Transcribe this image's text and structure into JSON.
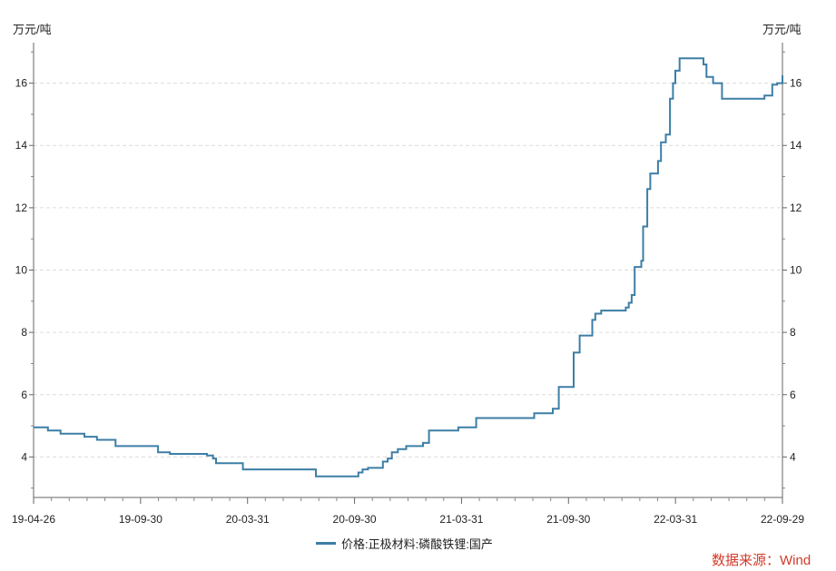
{
  "chart_data": {
    "type": "line",
    "y_unit_left": "万元/吨",
    "y_unit_right": "万元/吨",
    "ylim": [
      2.7,
      17.3
    ],
    "y_ticks": [
      4,
      6,
      8,
      10,
      12,
      14,
      16
    ],
    "x_tick_labels": [
      "19-04-26",
      "19-09-30",
      "20-03-31",
      "20-09-30",
      "21-03-31",
      "21-09-30",
      "22-03-31",
      "22-09-29"
    ],
    "grid": "horizontal-dashed",
    "legend_position": "bottom",
    "series": [
      {
        "name": "价格:正极材料:磷酸铁锂:国产",
        "color": "#3d7ea6",
        "points": [
          [
            "2019-04-26",
            4.95
          ],
          [
            "2019-05-20",
            4.85
          ],
          [
            "2019-06-10",
            4.75
          ],
          [
            "2019-07-20",
            4.65
          ],
          [
            "2019-08-10",
            4.55
          ],
          [
            "2019-09-10",
            4.35
          ],
          [
            "2019-11-20",
            4.15
          ],
          [
            "2019-12-10",
            4.1
          ],
          [
            "2020-02-10",
            4.05
          ],
          [
            "2020-02-20",
            3.95
          ],
          [
            "2020-02-25",
            3.8
          ],
          [
            "2020-04-10",
            3.6
          ],
          [
            "2020-08-10",
            3.38
          ],
          [
            "2020-10-20",
            3.5
          ],
          [
            "2020-10-27",
            3.6
          ],
          [
            "2020-11-05",
            3.65
          ],
          [
            "2020-11-30",
            3.85
          ],
          [
            "2020-12-08",
            3.95
          ],
          [
            "2020-12-15",
            4.15
          ],
          [
            "2020-12-25",
            4.25
          ],
          [
            "2021-01-08",
            4.35
          ],
          [
            "2021-02-05",
            4.45
          ],
          [
            "2021-02-15",
            4.85
          ],
          [
            "2021-03-10",
            4.85
          ],
          [
            "2021-04-05",
            4.95
          ],
          [
            "2021-05-05",
            5.25
          ],
          [
            "2021-08-10",
            5.4
          ],
          [
            "2021-09-10",
            5.55
          ],
          [
            "2021-09-20",
            6.25
          ],
          [
            "2021-10-15",
            7.35
          ],
          [
            "2021-10-25",
            7.9
          ],
          [
            "2021-11-15",
            8.4
          ],
          [
            "2021-11-20",
            8.6
          ],
          [
            "2021-11-30",
            8.7
          ],
          [
            "2022-01-10",
            8.8
          ],
          [
            "2022-01-15",
            8.95
          ],
          [
            "2022-01-20",
            9.2
          ],
          [
            "2022-01-25",
            10.1
          ],
          [
            "2022-02-05",
            10.3
          ],
          [
            "2022-02-08",
            11.4
          ],
          [
            "2022-02-15",
            12.6
          ],
          [
            "2022-02-20",
            13.1
          ],
          [
            "2022-03-05",
            13.5
          ],
          [
            "2022-03-10",
            14.1
          ],
          [
            "2022-03-18",
            14.35
          ],
          [
            "2022-03-25",
            15.5
          ],
          [
            "2022-03-30",
            16.0
          ],
          [
            "2022-04-03",
            16.4
          ],
          [
            "2022-04-10",
            16.8
          ],
          [
            "2022-05-20",
            16.6
          ],
          [
            "2022-05-25",
            16.2
          ],
          [
            "2022-06-05",
            16.0
          ],
          [
            "2022-06-20",
            15.5
          ],
          [
            "2022-08-30",
            15.6
          ],
          [
            "2022-09-12",
            15.95
          ],
          [
            "2022-09-20",
            16.0
          ],
          [
            "2022-09-29",
            16.25
          ]
        ]
      }
    ],
    "source": "数据来源：Wind"
  }
}
